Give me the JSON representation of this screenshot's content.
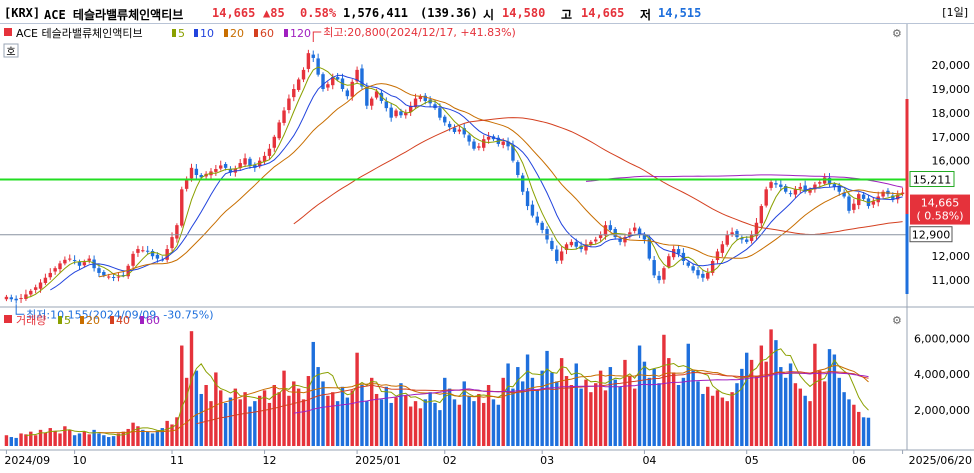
{
  "header": {
    "market": "[KRX]",
    "name": "ACE 테슬라밸류체인액티브",
    "price": "14,665",
    "change": "▲85",
    "change_pct": "0.58%",
    "volume": "1,576,411",
    "volume_ratio": "(139.36)",
    "open_label": "시",
    "open": "14,580",
    "high_label": "고",
    "high": "14,665",
    "low_label": "저",
    "low": "14,515",
    "period": "[1일]"
  },
  "price_panel": {
    "legend_title": "ACE 테슬라밸류체인액티브",
    "ma_legend": [
      {
        "label": "5",
        "color": "#8aa000"
      },
      {
        "label": "10",
        "color": "#2244dd"
      },
      {
        "label": "20",
        "color": "#c86e00"
      },
      {
        "label": "60",
        "color": "#d44020"
      },
      {
        "label": "120",
        "color": "#a020c0"
      }
    ],
    "max_annotation": "최고:20,800(2024/12/17, +41.83%)",
    "min_annotation": "최저:10,155(2024/09/09, -30.75%)",
    "y_ticks": [
      "20,000",
      "19,000",
      "18,000",
      "17,000",
      "16,000",
      "12,000",
      "11,000"
    ],
    "current_price_label": "14,665",
    "current_pct_label": "( 0.58%)",
    "green_line_label": "15,211",
    "gray_line_label": "12,900",
    "mode_icon": "호",
    "colors": {
      "up": "#e5323b",
      "down": "#1e6fdc",
      "green_line": "#22dd22"
    }
  },
  "volume_panel": {
    "legend_title": "거래량",
    "ma_legend": [
      {
        "label": "5",
        "color": "#8aa000"
      },
      {
        "label": "20",
        "color": "#c86e00"
      },
      {
        "label": "40",
        "color": "#d44020"
      },
      {
        "label": "60",
        "color": "#a020c0"
      }
    ],
    "y_ticks": [
      "6,000,000",
      "4,000,000",
      "2,000,000"
    ]
  },
  "x_axis_labels": [
    "2024/09",
    "10",
    "11",
    "12",
    "2025/01",
    "02",
    "03",
    "04",
    "05",
    "06",
    "2025/06/20"
  ],
  "chart_data": {
    "type": "candlestick",
    "title": "ACE 테슬라밸류체인액티브",
    "x_range": [
      "2024/09/03",
      "2025/06/20"
    ],
    "y_range": [
      10000,
      20800
    ],
    "volume_range": [
      0,
      6800000
    ],
    "horizontal_lines": [
      15211,
      12900
    ],
    "high": {
      "value": 20800,
      "date": "2024/12/17",
      "pct": 41.83
    },
    "low": {
      "value": 10155,
      "date": "2024/09/09",
      "pct": -30.75
    },
    "close_series": [
      {
        "x": "2024/09",
        "y": 10300
      },
      {
        "x": "2024/09",
        "y": 10200
      },
      {
        "x": "2024/09",
        "y": 10155
      },
      {
        "x": "2024/09",
        "y": 10250
      },
      {
        "x": "2024/09",
        "y": 10400
      },
      {
        "x": "2024/09",
        "y": 10550
      },
      {
        "x": "2024/09",
        "y": 10700
      },
      {
        "x": "2024/09",
        "y": 10900
      },
      {
        "x": "2024/09",
        "y": 11100
      },
      {
        "x": "2024/09",
        "y": 11300
      },
      {
        "x": "2024/09",
        "y": 11500
      },
      {
        "x": "2024/09",
        "y": 11700
      },
      {
        "x": "2024/09",
        "y": 11850
      },
      {
        "x": "2024/09",
        "y": 11900
      },
      {
        "x": "2024/10",
        "y": 11800
      },
      {
        "x": "2024/10",
        "y": 11600
      },
      {
        "x": "2024/10",
        "y": 11750
      },
      {
        "x": "2024/10",
        "y": 11900
      },
      {
        "x": "2024/10",
        "y": 11500
      },
      {
        "x": "2024/10",
        "y": 11300
      },
      {
        "x": "2024/10",
        "y": 11200
      },
      {
        "x": "2024/10",
        "y": 11150
      },
      {
        "x": "2024/10",
        "y": 11100
      },
      {
        "x": "2024/10",
        "y": 11150
      },
      {
        "x": "2024/10",
        "y": 11200
      },
      {
        "x": "2024/10",
        "y": 11600
      },
      {
        "x": "2024/10",
        "y": 12100
      },
      {
        "x": "2024/10",
        "y": 12300
      },
      {
        "x": "2024/10",
        "y": 12250
      },
      {
        "x": "2024/10",
        "y": 12200
      },
      {
        "x": "2024/10",
        "y": 12000
      },
      {
        "x": "2024/10",
        "y": 11900
      },
      {
        "x": "2024/10",
        "y": 11850
      },
      {
        "x": "2024/10",
        "y": 12300
      },
      {
        "x": "2024/11",
        "y": 12800
      },
      {
        "x": "2024/11",
        "y": 13300
      },
      {
        "x": "2024/11",
        "y": 14800
      },
      {
        "x": "2024/11",
        "y": 15200
      },
      {
        "x": "2024/11",
        "y": 15700
      },
      {
        "x": "2024/11",
        "y": 15400
      },
      {
        "x": "2024/11",
        "y": 15300
      },
      {
        "x": "2024/11",
        "y": 15450
      },
      {
        "x": "2024/11",
        "y": 15550
      },
      {
        "x": "2024/11",
        "y": 15650
      },
      {
        "x": "2024/11",
        "y": 15800
      },
      {
        "x": "2024/11",
        "y": 15700
      },
      {
        "x": "2024/11",
        "y": 15500
      },
      {
        "x": "2024/11",
        "y": 15650
      },
      {
        "x": "2024/11",
        "y": 15900
      },
      {
        "x": "2024/11",
        "y": 16100
      },
      {
        "x": "2024/11",
        "y": 15800
      },
      {
        "x": "2024/11",
        "y": 15700
      },
      {
        "x": "2024/11",
        "y": 16000
      },
      {
        "x": "2024/12",
        "y": 16200
      },
      {
        "x": "2024/12",
        "y": 16500
      },
      {
        "x": "2024/12",
        "y": 17000
      },
      {
        "x": "2024/12",
        "y": 17600
      },
      {
        "x": "2024/12",
        "y": 18100
      },
      {
        "x": "2024/12",
        "y": 18600
      },
      {
        "x": "2024/12",
        "y": 19000
      },
      {
        "x": "2024/12",
        "y": 19400
      },
      {
        "x": "2024/12",
        "y": 19800
      },
      {
        "x": "2024/12",
        "y": 20500
      },
      {
        "x": "2024/12",
        "y": 20300
      },
      {
        "x": "2024/12",
        "y": 19600
      },
      {
        "x": "2024/12",
        "y": 19000
      },
      {
        "x": "2024/12",
        "y": 19200
      },
      {
        "x": "2024/12",
        "y": 19500
      },
      {
        "x": "2024/12",
        "y": 19400
      },
      {
        "x": "2024/12",
        "y": 19000
      },
      {
        "x": "2024/12",
        "y": 18700
      },
      {
        "x": "2024/12",
        "y": 19300
      },
      {
        "x": "2024/12",
        "y": 19800
      },
      {
        "x": "2025/01",
        "y": 19100
      },
      {
        "x": "2025/01",
        "y": 18300
      },
      {
        "x": "2025/01",
        "y": 18600
      },
      {
        "x": "2025/01",
        "y": 18900
      },
      {
        "x": "2025/01",
        "y": 18500
      },
      {
        "x": "2025/01",
        "y": 18200
      },
      {
        "x": "2025/01",
        "y": 17800
      },
      {
        "x": "2025/01",
        "y": 18100
      },
      {
        "x": "2025/01",
        "y": 17900
      },
      {
        "x": "2025/01",
        "y": 18000
      },
      {
        "x": "2025/01",
        "y": 18300
      },
      {
        "x": "2025/01",
        "y": 18600
      },
      {
        "x": "2025/01",
        "y": 18700
      },
      {
        "x": "2025/01",
        "y": 18500
      },
      {
        "x": "2025/01",
        "y": 18400
      },
      {
        "x": "2025/01",
        "y": 18200
      },
      {
        "x": "2025/01",
        "y": 17800
      },
      {
        "x": "2025/01",
        "y": 17600
      },
      {
        "x": "2025/02",
        "y": 17400
      },
      {
        "x": "2025/02",
        "y": 17200
      },
      {
        "x": "2025/02",
        "y": 17300
      },
      {
        "x": "2025/02",
        "y": 17100
      },
      {
        "x": "2025/02",
        "y": 16800
      },
      {
        "x": "2025/02",
        "y": 16500
      },
      {
        "x": "2025/02",
        "y": 16600
      },
      {
        "x": "2025/02",
        "y": 16900
      },
      {
        "x": "2025/02",
        "y": 17000
      },
      {
        "x": "2025/02",
        "y": 16900
      },
      {
        "x": "2025/02",
        "y": 16700
      },
      {
        "x": "2025/02",
        "y": 16800
      },
      {
        "x": "2025/02",
        "y": 16600
      },
      {
        "x": "2025/02",
        "y": 16000
      },
      {
        "x": "2025/02",
        "y": 15400
      },
      {
        "x": "2025/02",
        "y": 14700
      },
      {
        "x": "2025/02",
        "y": 14100
      },
      {
        "x": "2025/02",
        "y": 13700
      },
      {
        "x": "2025/02",
        "y": 13400
      },
      {
        "x": "2025/02",
        "y": 13100
      },
      {
        "x": "2025/03",
        "y": 12700
      },
      {
        "x": "2025/03",
        "y": 12300
      },
      {
        "x": "2025/03",
        "y": 11800
      },
      {
        "x": "2025/03",
        "y": 12200
      },
      {
        "x": "2025/03",
        "y": 12500
      },
      {
        "x": "2025/03",
        "y": 12600
      },
      {
        "x": "2025/03",
        "y": 12400
      },
      {
        "x": "2025/03",
        "y": 12300
      },
      {
        "x": "2025/03",
        "y": 12500
      },
      {
        "x": "2025/03",
        "y": 12600
      },
      {
        "x": "2025/03",
        "y": 12700
      },
      {
        "x": "2025/03",
        "y": 12900
      },
      {
        "x": "2025/03",
        "y": 13300
      },
      {
        "x": "2025/03",
        "y": 13100
      },
      {
        "x": "2025/03",
        "y": 12800
      },
      {
        "x": "2025/03",
        "y": 12600
      },
      {
        "x": "2025/03",
        "y": 12800
      },
      {
        "x": "2025/03",
        "y": 13000
      },
      {
        "x": "2025/03",
        "y": 13200
      },
      {
        "x": "2025/03",
        "y": 12900
      },
      {
        "x": "2025/04",
        "y": 12700
      },
      {
        "x": "2025/04",
        "y": 11900
      },
      {
        "x": "2025/04",
        "y": 11200
      },
      {
        "x": "2025/04",
        "y": 11000
      },
      {
        "x": "2025/04",
        "y": 11500
      },
      {
        "x": "2025/04",
        "y": 12000
      },
      {
        "x": "2025/04",
        "y": 12300
      },
      {
        "x": "2025/04",
        "y": 12100
      },
      {
        "x": "2025/04",
        "y": 11800
      },
      {
        "x": "2025/04",
        "y": 11600
      },
      {
        "x": "2025/04",
        "y": 11400
      },
      {
        "x": "2025/04",
        "y": 11200
      },
      {
        "x": "2025/04",
        "y": 11100
      },
      {
        "x": "2025/04",
        "y": 11300
      },
      {
        "x": "2025/04",
        "y": 11800
      },
      {
        "x": "2025/04",
        "y": 12200
      },
      {
        "x": "2025/04",
        "y": 12500
      },
      {
        "x": "2025/04",
        "y": 12900
      },
      {
        "x": "2025/04",
        "y": 13000
      },
      {
        "x": "2025/04",
        "y": 12800
      },
      {
        "x": "2025/04",
        "y": 12700
      },
      {
        "x": "2025/05",
        "y": 12600
      },
      {
        "x": "2025/05",
        "y": 12900
      },
      {
        "x": "2025/05",
        "y": 13400
      },
      {
        "x": "2025/05",
        "y": 14100
      },
      {
        "x": "2025/05",
        "y": 14800
      },
      {
        "x": "2025/05",
        "y": 15100
      },
      {
        "x": "2025/05",
        "y": 15000
      },
      {
        "x": "2025/05",
        "y": 14900
      },
      {
        "x": "2025/05",
        "y": 14700
      },
      {
        "x": "2025/05",
        "y": 14600
      },
      {
        "x": "2025/05",
        "y": 14800
      },
      {
        "x": "2025/05",
        "y": 14900
      },
      {
        "x": "2025/05",
        "y": 14700
      },
      {
        "x": "2025/05",
        "y": 14800
      },
      {
        "x": "2025/05",
        "y": 15000
      },
      {
        "x": "2025/05",
        "y": 15100
      },
      {
        "x": "2025/05",
        "y": 15300
      },
      {
        "x": "2025/05",
        "y": 15000
      },
      {
        "x": "2025/05",
        "y": 14900
      },
      {
        "x": "2025/05",
        "y": 14700
      },
      {
        "x": "2025/06",
        "y": 14500
      },
      {
        "x": "2025/06",
        "y": 13900
      },
      {
        "x": "2025/06",
        "y": 14200
      },
      {
        "x": "2025/06",
        "y": 14600
      },
      {
        "x": "2025/06",
        "y": 14400
      },
      {
        "x": "2025/06",
        "y": 14100
      },
      {
        "x": "2025/06",
        "y": 14300
      },
      {
        "x": "2025/06",
        "y": 14500
      },
      {
        "x": "2025/06",
        "y": 14700
      },
      {
        "x": "2025/06",
        "y": 14600
      },
      {
        "x": "2025/06",
        "y": 14400
      },
      {
        "x": "2025/06",
        "y": 14580
      },
      {
        "x": "2025/06",
        "y": 14665
      }
    ],
    "volume_series": [
      600000,
      500000,
      450000,
      700000,
      650000,
      800000,
      600000,
      900000,
      750000,
      1000000,
      850000,
      700000,
      1100000,
      900000,
      600000,
      700000,
      800000,
      650000,
      900000,
      700000,
      600000,
      500000,
      550000,
      700000,
      800000,
      950000,
      1300000,
      1100000,
      900000,
      800000,
      700000,
      850000,
      1000000,
      1400000,
      1200000,
      1600000,
      5600000,
      3800000,
      6400000,
      4200000,
      2900000,
      3400000,
      2500000,
      4100000,
      3100000,
      2400000,
      2700000,
      3200000,
      2600000,
      3000000,
      2200000,
      2500000,
      2800000,
      3100000,
      2400000,
      3400000,
      3000000,
      4200000,
      2800000,
      3600000,
      3200000,
      2600000,
      3900000,
      5800000,
      4400000,
      3600000,
      2800000,
      3000000,
      2500000,
      3300000,
      2700000,
      3100000,
      5200000,
      3400000,
      2500000,
      3800000,
      2900000,
      2600000,
      3300000,
      2400000,
      2700000,
      3500000,
      2800000,
      2200000,
      2500000,
      2100000,
      2600000,
      3000000,
      2400000,
      2000000,
      3800000,
      3200000,
      2600000,
      2300000,
      3600000,
      2800000,
      2500000,
      2900000,
      2400000,
      3400000,
      2600000,
      2300000,
      3800000,
      4600000,
      3200000,
      4400000,
      3600000,
      5100000,
      3800000,
      3100000,
      4200000,
      5300000,
      4100000,
      3600000,
      4900000,
      3900000,
      3400000,
      4600000,
      3200000,
      3700000,
      3000000,
      3500000,
      4200000,
      3100000,
      4400000,
      3700000,
      3300000,
      4800000,
      3900000,
      3200000,
      5600000,
      4700000,
      3800000,
      4300000,
      3500000,
      6200000,
      4900000,
      4100000,
      3400000,
      3800000,
      5700000,
      4200000,
      3600000,
      2900000,
      3300000,
      2800000,
      3100000,
      2700000,
      2500000,
      3000000,
      3500000,
      4300000,
      5200000,
      4800000,
      3900000,
      5600000,
      4700000,
      6500000,
      5900000,
      4400000,
      3800000,
      4600000,
      3500000,
      3200000,
      2800000,
      2500000,
      5700000,
      4200000,
      3600000,
      5400000,
      5100000,
      3800000,
      3000000,
      2600000,
      2300000,
      1900000,
      1600000,
      1576411
    ]
  }
}
